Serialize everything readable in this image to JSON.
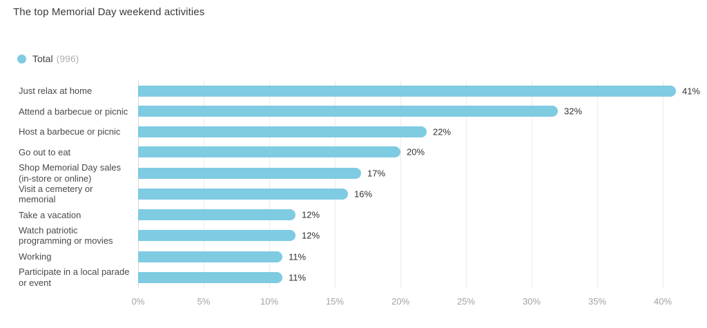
{
  "title": "The top Memorial Day weekend activities",
  "legend": {
    "label": "Total",
    "count": "(996)"
  },
  "colors": {
    "bar": "#7ecbe2",
    "title_text": "#37393b",
    "category_text": "#47494b",
    "value_text": "#2e3032",
    "tick_text": "#9fa2a5",
    "legend_count_text": "#aeb1b4",
    "gridline": "#ececec",
    "zero_axis": "#d9d9d9",
    "background": "#ffffff"
  },
  "chart_data": {
    "type": "bar",
    "orientation": "horizontal",
    "title": "The top Memorial Day weekend activities",
    "categories": [
      "Just relax at home",
      "Attend a barbecue or picnic",
      "Host a barbecue or picnic",
      "Go out to eat",
      "Shop Memorial Day sales (in-store or online)",
      "Visit a cemetery or memorial",
      "Take a vacation",
      "Watch patriotic programming or movies",
      "Working",
      "Participate in a local parade or event"
    ],
    "values": [
      41,
      32,
      22,
      20,
      17,
      16,
      12,
      12,
      11,
      11
    ],
    "value_labels": [
      "41%",
      "32%",
      "22%",
      "20%",
      "17%",
      "16%",
      "12%",
      "12%",
      "11%",
      "11%"
    ],
    "x_ticks": [
      "0%",
      "5%",
      "10%",
      "15%",
      "20%",
      "25%",
      "30%",
      "35%",
      "40%"
    ],
    "x_tick_values": [
      0,
      5,
      10,
      15,
      20,
      25,
      30,
      35,
      40
    ],
    "xlim": [
      0,
      42.7
    ],
    "xlabel": "",
    "ylabel": "",
    "grid": "vertical",
    "legend_entries": [
      "Total (996)"
    ],
    "legend_position": "top-left",
    "series": [
      {
        "name": "Total (996)",
        "values": [
          41,
          32,
          22,
          20,
          17,
          16,
          12,
          12,
          11,
          11
        ]
      }
    ]
  }
}
